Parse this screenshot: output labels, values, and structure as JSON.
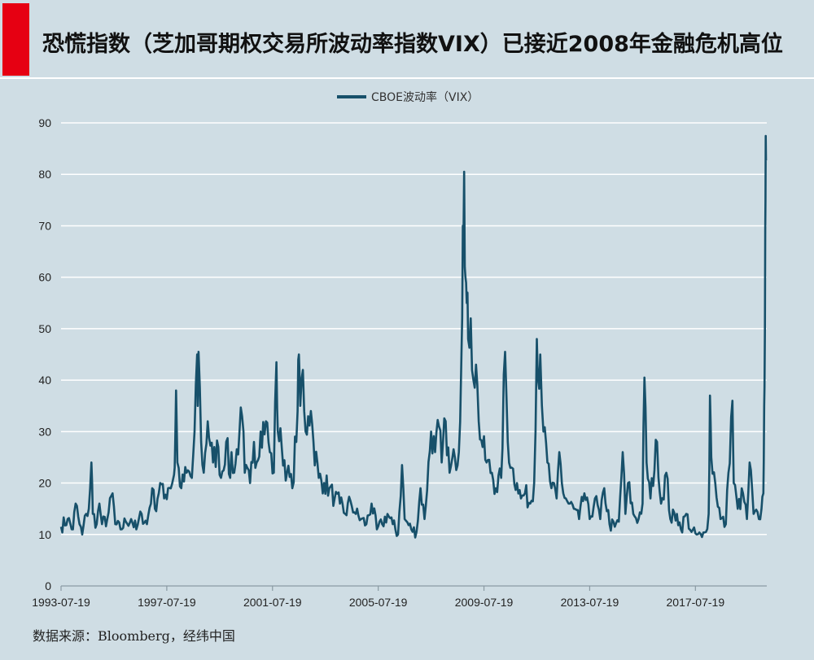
{
  "chart_data": {
    "type": "line",
    "title": "恐慌指数（芝加哥期权交易所波动率指数VIX）已接近2008年金融危机高位",
    "xlabel": "",
    "ylabel": "",
    "ylim": [
      0,
      90
    ],
    "yticks": [
      0,
      10,
      20,
      30,
      40,
      50,
      60,
      70,
      80,
      90
    ],
    "xlim": [
      1993.55,
      2020.25
    ],
    "xticks": [
      {
        "label": "1993-07-19",
        "value": 1993.55
      },
      {
        "label": "1997-07-19",
        "value": 1997.55
      },
      {
        "label": "2001-07-19",
        "value": 2001.55
      },
      {
        "label": "2005-07-19",
        "value": 2005.55
      },
      {
        "label": "2009-07-19",
        "value": 2009.55
      },
      {
        "label": "2013-07-19",
        "value": 2013.55
      },
      {
        "label": "2017-07-19",
        "value": 2017.55
      }
    ],
    "grid": true,
    "legend_position": "top-center",
    "series": [
      {
        "name": "CBOE波动率（VIX）",
        "color": "#17506a",
        "points": [
          [
            1993.55,
            11.5
          ],
          [
            1993.8,
            13
          ],
          [
            1994.0,
            11
          ],
          [
            1994.1,
            16
          ],
          [
            1994.25,
            12
          ],
          [
            1994.35,
            10
          ],
          [
            1994.5,
            14
          ],
          [
            1994.6,
            15
          ],
          [
            1994.7,
            24
          ],
          [
            1994.75,
            14
          ],
          [
            1994.9,
            12
          ],
          [
            1995.0,
            16
          ],
          [
            1995.1,
            12
          ],
          [
            1995.3,
            13
          ],
          [
            1995.5,
            18
          ],
          [
            1995.6,
            12
          ],
          [
            1995.8,
            11
          ],
          [
            1996.0,
            12.5
          ],
          [
            1996.2,
            13
          ],
          [
            1996.4,
            11
          ],
          [
            1996.6,
            14
          ],
          [
            1996.8,
            12
          ],
          [
            1997.0,
            19
          ],
          [
            1997.1,
            15
          ],
          [
            1997.3,
            20
          ],
          [
            1997.45,
            17
          ],
          [
            1997.6,
            19
          ],
          [
            1997.8,
            21
          ],
          [
            1997.85,
            23
          ],
          [
            1997.9,
            38
          ],
          [
            1997.95,
            24
          ],
          [
            1998.1,
            19
          ],
          [
            1998.3,
            22
          ],
          [
            1998.5,
            21
          ],
          [
            1998.6,
            30
          ],
          [
            1998.7,
            45
          ],
          [
            1998.72,
            35
          ],
          [
            1998.75,
            45.5
          ],
          [
            1998.85,
            28
          ],
          [
            1998.95,
            22
          ],
          [
            1999.1,
            32
          ],
          [
            1999.3,
            24
          ],
          [
            1999.5,
            27
          ],
          [
            1999.6,
            21
          ],
          [
            1999.8,
            28
          ],
          [
            1999.95,
            21
          ],
          [
            2000.0,
            26
          ],
          [
            2000.1,
            22
          ],
          [
            2000.3,
            30
          ],
          [
            2000.4,
            33
          ],
          [
            2000.5,
            22
          ],
          [
            2000.7,
            20
          ],
          [
            2000.85,
            28
          ],
          [
            2000.95,
            24
          ],
          [
            2001.1,
            30
          ],
          [
            2001.3,
            32
          ],
          [
            2001.45,
            26
          ],
          [
            2001.6,
            22
          ],
          [
            2001.7,
            43.5
          ],
          [
            2001.75,
            30
          ],
          [
            2001.9,
            27
          ],
          [
            2002.1,
            22
          ],
          [
            2002.3,
            19
          ],
          [
            2002.5,
            34
          ],
          [
            2002.55,
            45
          ],
          [
            2002.6,
            35
          ],
          [
            2002.7,
            42
          ],
          [
            2002.8,
            30
          ],
          [
            2002.9,
            33
          ],
          [
            2003.0,
            34
          ],
          [
            2003.1,
            28
          ],
          [
            2003.3,
            21
          ],
          [
            2003.5,
            20
          ],
          [
            2003.7,
            19
          ],
          [
            2003.9,
            17
          ],
          [
            2004.1,
            16
          ],
          [
            2004.3,
            14
          ],
          [
            2004.5,
            16.5
          ],
          [
            2004.7,
            14
          ],
          [
            2004.9,
            13
          ],
          [
            2005.1,
            12
          ],
          [
            2005.3,
            16
          ],
          [
            2005.5,
            11
          ],
          [
            2005.7,
            12
          ],
          [
            2005.9,
            14
          ],
          [
            2006.1,
            12
          ],
          [
            2006.3,
            10
          ],
          [
            2006.45,
            23.5
          ],
          [
            2006.55,
            13
          ],
          [
            2006.8,
            11
          ],
          [
            2007.0,
            10.5
          ],
          [
            2007.15,
            19
          ],
          [
            2007.3,
            13
          ],
          [
            2007.55,
            30
          ],
          [
            2007.7,
            26
          ],
          [
            2007.85,
            31
          ],
          [
            2007.95,
            24
          ],
          [
            2008.1,
            32
          ],
          [
            2008.25,
            22
          ],
          [
            2008.45,
            25
          ],
          [
            2008.6,
            26
          ],
          [
            2008.7,
            45
          ],
          [
            2008.75,
            70
          ],
          [
            2008.8,
            80.5
          ],
          [
            2008.85,
            60
          ],
          [
            2008.9,
            55
          ],
          [
            2008.95,
            48
          ],
          [
            2009.05,
            52
          ],
          [
            2009.15,
            40
          ],
          [
            2009.25,
            43
          ],
          [
            2009.35,
            32
          ],
          [
            2009.5,
            27
          ],
          [
            2009.65,
            24
          ],
          [
            2009.85,
            22
          ],
          [
            2010.0,
            19
          ],
          [
            2010.2,
            21
          ],
          [
            2010.35,
            45.5
          ],
          [
            2010.45,
            28
          ],
          [
            2010.6,
            23
          ],
          [
            2010.8,
            20
          ],
          [
            2010.95,
            17
          ],
          [
            2011.1,
            18
          ],
          [
            2011.3,
            16
          ],
          [
            2011.45,
            20
          ],
          [
            2011.55,
            48
          ],
          [
            2011.6,
            40
          ],
          [
            2011.68,
            45
          ],
          [
            2011.8,
            30
          ],
          [
            2011.95,
            24
          ],
          [
            2012.1,
            19
          ],
          [
            2012.3,
            17
          ],
          [
            2012.4,
            26
          ],
          [
            2012.55,
            18
          ],
          [
            2012.75,
            16
          ],
          [
            2012.95,
            15
          ],
          [
            2013.15,
            13
          ],
          [
            2013.35,
            18
          ],
          [
            2013.55,
            13
          ],
          [
            2013.75,
            17
          ],
          [
            2013.95,
            13
          ],
          [
            2014.1,
            19
          ],
          [
            2014.3,
            12
          ],
          [
            2014.5,
            11.5
          ],
          [
            2014.65,
            12.5
          ],
          [
            2014.8,
            26
          ],
          [
            2014.9,
            14
          ],
          [
            2015.0,
            20
          ],
          [
            2015.2,
            14
          ],
          [
            2015.4,
            13
          ],
          [
            2015.55,
            16
          ],
          [
            2015.62,
            40.5
          ],
          [
            2015.7,
            24
          ],
          [
            2015.85,
            17
          ],
          [
            2016.1,
            28
          ],
          [
            2016.25,
            16
          ],
          [
            2016.45,
            22
          ],
          [
            2016.6,
            13
          ],
          [
            2016.85,
            14
          ],
          [
            2017.0,
            11
          ],
          [
            2017.2,
            14
          ],
          [
            2017.4,
            10.5
          ],
          [
            2017.6,
            10
          ],
          [
            2017.8,
            9.5
          ],
          [
            2017.95,
            10.5
          ],
          [
            2018.05,
            14
          ],
          [
            2018.1,
            37
          ],
          [
            2018.15,
            25
          ],
          [
            2018.3,
            20
          ],
          [
            2018.5,
            13
          ],
          [
            2018.7,
            12
          ],
          [
            2018.8,
            22
          ],
          [
            2018.95,
            36
          ],
          [
            2019.0,
            20
          ],
          [
            2019.15,
            15
          ],
          [
            2019.35,
            18
          ],
          [
            2019.5,
            13
          ],
          [
            2019.6,
            24
          ],
          [
            2019.75,
            14
          ],
          [
            2019.95,
            13
          ],
          [
            2020.05,
            15
          ],
          [
            2020.12,
            18
          ],
          [
            2020.15,
            35
          ],
          [
            2020.18,
            50
          ],
          [
            2020.2,
            75
          ],
          [
            2020.22,
            82.7
          ]
        ]
      }
    ]
  },
  "source": "数据来源：Bloomberg，经纬中国"
}
